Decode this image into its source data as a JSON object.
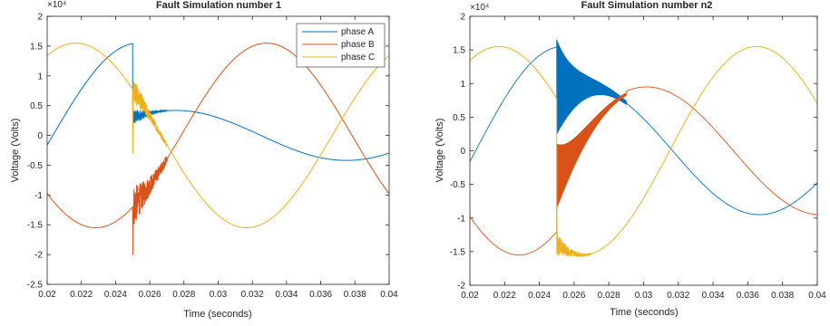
{
  "colors": {
    "A": "#0072BD",
    "B": "#D95319",
    "C": "#EDB120",
    "axis": "#262626",
    "background": "#ffffff"
  },
  "chart_data": [
    {
      "type": "line",
      "title": "Fault Simulation number 1",
      "xlabel": "Time (seconds)",
      "ylabel": "Voltage (Volts)",
      "exponent_label": "×10⁴",
      "xlim": [
        0.02,
        0.04
      ],
      "ylim": [
        -2.5,
        2
      ],
      "xticks": [
        "0.02",
        "0.022",
        "0.024",
        "0.026",
        "0.028",
        "0.03",
        "0.032",
        "0.034",
        "0.036",
        "0.038",
        "0.04"
      ],
      "yticks": [
        "-2.5",
        "-2",
        "-1.5",
        "-1",
        "-0.5",
        "0",
        "0.5",
        "1",
        "1.5",
        "2"
      ],
      "units_note": "y values in units of 10^4 Volts",
      "legend": {
        "placement": "top-right",
        "entries": [
          "phase A",
          "phase B",
          "phase C"
        ]
      },
      "fault_time": 0.025,
      "series": [
        {
          "name": "phase A",
          "color_key": "A",
          "pre": {
            "amplitude": 1.55,
            "peak_time": 0.02533
          },
          "post": {
            "amplitude": 0.42,
            "peak_time": 0.0275
          },
          "transient": {
            "spike_min": -0.3,
            "spike_max": 1.0,
            "decay": 0.0008,
            "noise": 0.05
          }
        },
        {
          "name": "phase B",
          "color_key": "B",
          "pre": {
            "amplitude": 1.55,
            "peak_time": 0.03283
          },
          "post": {
            "amplitude": 1.55,
            "peak_time": 0.03283
          },
          "transient": {
            "spike_min": -2.0,
            "spike_max": -1.4,
            "decay": 0.0012,
            "noise": 0.12
          }
        },
        {
          "name": "phase C",
          "color_key": "C",
          "pre": {
            "amplitude": 1.55,
            "peak_time": 0.02167
          },
          "post": {
            "amplitude": 1.55,
            "peak_time": 0.02167
          },
          "transient": {
            "spike_min": -0.3,
            "spike_max": 0.6,
            "decay": 0.001,
            "noise": 0.08
          }
        }
      ]
    },
    {
      "type": "line",
      "title": "Fault Simulation number n2",
      "xlabel": "Time (seconds)",
      "ylabel": "Voltage (Volts)",
      "exponent_label": "×10⁴",
      "xlim": [
        0.02,
        0.04
      ],
      "ylim": [
        -2,
        2
      ],
      "xticks": [
        "0.02",
        "0.022",
        "0.024",
        "0.026",
        "0.028",
        "0.03",
        "0.032",
        "0.034",
        "0.036",
        "0.038",
        "0.04"
      ],
      "yticks": [
        "-2",
        "-1.5",
        "-1",
        "-0.5",
        "0",
        "0.5",
        "1",
        "1.5",
        "2"
      ],
      "units_note": "y values in units of 10^4 Volts",
      "fault_time": 0.025,
      "series": [
        {
          "name": "phase A",
          "color_key": "A",
          "pre": {
            "amplitude": 1.55,
            "peak_time": 0.02533
          },
          "post": {
            "amplitude": 0.95,
            "peak_time": 0.02667
          },
          "transient": {
            "envelope_hi": 1.65,
            "envelope_lo": 0.25,
            "decay": 0.0012,
            "settle_to": 0.95,
            "dense": true
          }
        },
        {
          "name": "phase B",
          "color_key": "B",
          "pre": {
            "amplitude": 1.55,
            "peak_time": 0.03283
          },
          "post": {
            "amplitude": 0.95,
            "peak_time": 0.03017
          },
          "transient": {
            "envelope_hi": 0.1,
            "envelope_lo": -0.85,
            "decay": 0.0012,
            "settle_to": 0.0,
            "dense": true
          }
        },
        {
          "name": "phase C",
          "color_key": "C",
          "pre": {
            "amplitude": 1.55,
            "peak_time": 0.02167
          },
          "post": {
            "amplitude": 1.55,
            "peak_time": 0.0365
          },
          "transient": {
            "spike_min": -1.0,
            "spike_max": -0.6,
            "decay": 0.0007,
            "noise": 0.06
          }
        }
      ]
    }
  ]
}
